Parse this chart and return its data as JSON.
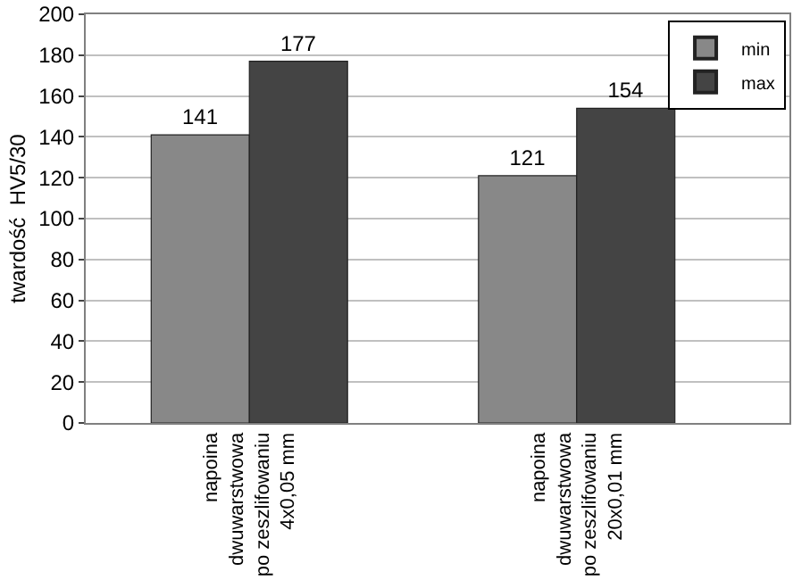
{
  "chart_data": {
    "type": "bar",
    "ylabel": "twardość  HV5/30",
    "categories": [
      "napoina\ndwuwarstwowa\npo zeszlifowaniu\n4x0,05 mm",
      "napoina\ndwuwarstwowa\npo zeszlifowaniu\n20x0,01 mm"
    ],
    "series": [
      {
        "name": "min",
        "color": "#888888",
        "values": [
          141,
          121
        ]
      },
      {
        "name": "max",
        "color": "#444444",
        "values": [
          177,
          154
        ]
      }
    ],
    "ylim": [
      0,
      200
    ],
    "yticks": [
      0,
      20,
      40,
      60,
      80,
      100,
      120,
      140,
      160,
      180,
      200
    ],
    "grid": "y",
    "legend": "top right",
    "data_labels": true
  }
}
